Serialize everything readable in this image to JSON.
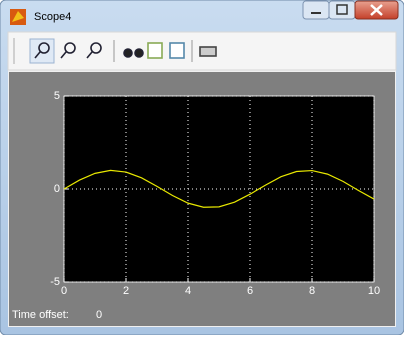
{
  "window": {
    "title": "Scope4"
  },
  "chart_data": {
    "type": "line",
    "x": [
      0,
      0.5,
      1,
      1.5,
      2,
      2.5,
      3,
      3.5,
      4,
      4.5,
      5,
      5.5,
      6,
      6.5,
      7,
      7.5,
      8,
      8.5,
      9,
      9.5,
      10
    ],
    "series": [
      {
        "color": "#e8e800",
        "values": [
          0,
          0.48,
          0.84,
          1.0,
          0.91,
          0.6,
          0.14,
          -0.35,
          -0.76,
          -0.98,
          -0.96,
          -0.71,
          -0.28,
          0.21,
          0.66,
          0.94,
          0.99,
          0.8,
          0.41,
          -0.08,
          -0.54
        ]
      }
    ],
    "xlim": [
      0,
      10
    ],
    "ylim": [
      -5,
      5
    ],
    "xticks": [
      0,
      2,
      4,
      6,
      8,
      10
    ],
    "yticks": [
      -5,
      0,
      5
    ],
    "grid": true
  },
  "footer": {
    "label": "Time offset:",
    "value": 0
  }
}
